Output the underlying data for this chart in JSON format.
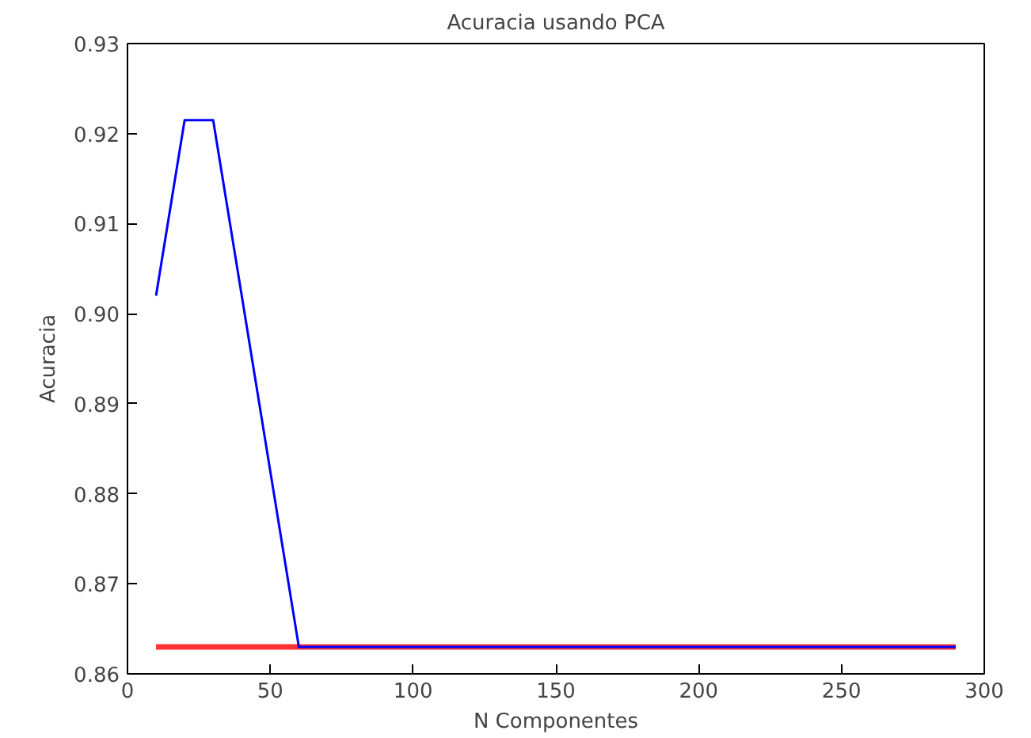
{
  "chart_data": {
    "type": "line",
    "title": "Acuracia usando PCA",
    "xlabel": "N Componentes",
    "ylabel": "Acuracia",
    "series": [
      {
        "color": "#ff3333",
        "x": [
          10,
          290
        ],
        "values": [
          0.863,
          0.863
        ]
      },
      {
        "color": "#0000ff",
        "x": [
          10,
          20,
          30,
          60,
          290
        ],
        "values": [
          0.902,
          0.9215,
          0.9215,
          0.863,
          0.863
        ]
      }
    ],
    "xlim": [
      0,
      300
    ],
    "xticks": [
      0,
      50,
      100,
      150,
      200,
      250,
      300
    ],
    "ylim": [
      0.86,
      0.93
    ],
    "yticks": [
      {
        "value": 0.86,
        "label": "0.86"
      },
      {
        "value": 0.87,
        "label": "0.87"
      },
      {
        "value": 0.88,
        "label": "0.88"
      },
      {
        "value": 0.89,
        "label": "0.89"
      },
      {
        "value": 0.9,
        "label": "0.90"
      },
      {
        "value": 0.91,
        "label": "0.91"
      },
      {
        "value": 0.92,
        "label": "0.92"
      },
      {
        "value": 0.93,
        "label": "0.93"
      }
    ],
    "grid": false
  }
}
